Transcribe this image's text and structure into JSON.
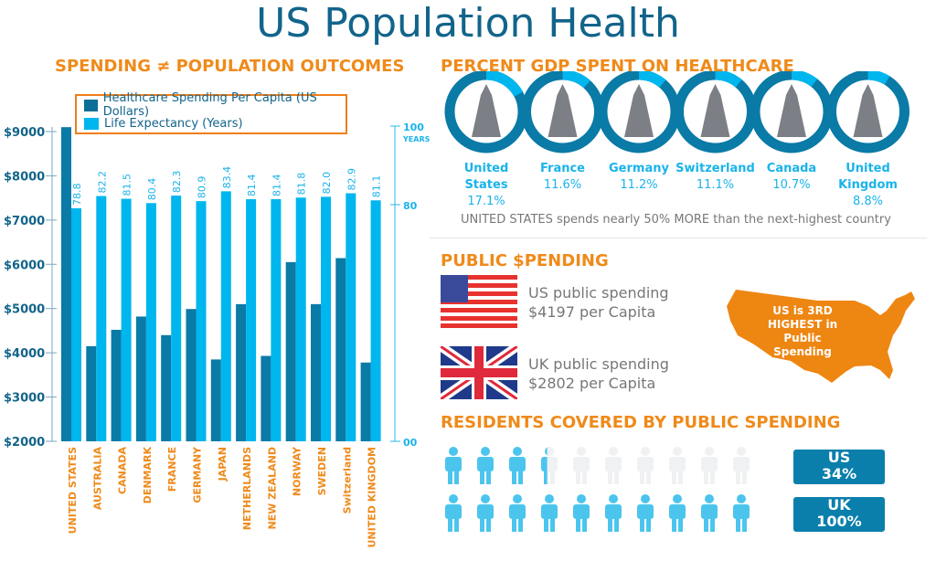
{
  "title": "US Population Health",
  "left": {
    "heading": "SPENDING ≠ POPULATION OUTCOMES"
  },
  "chart_data": {
    "type": "bar",
    "title": "",
    "categories": [
      "UNITED STATES",
      "AUSTRALIA",
      "CANADA",
      "DENMARK",
      "FRANCE",
      "GERMANY",
      "JAPAN",
      "NETHERLANDS",
      "NEW ZEALAND",
      "NORWAY",
      "SWEDEN",
      "Switzerland",
      "UNITED KINGDOM"
    ],
    "series": [
      {
        "name": "Healthcare Spending Per Capita (US Dollars)",
        "axis": "left",
        "color": "#0a7aa6",
        "values": [
          9100,
          4150,
          4520,
          4820,
          4400,
          4990,
          3850,
          5100,
          3930,
          6050,
          5100,
          6140,
          3780
        ]
      },
      {
        "name": "Life Expectancy (Years)",
        "axis": "right",
        "color": "#00b6ee",
        "values": [
          78.8,
          82.2,
          81.5,
          80.4,
          82.3,
          80.9,
          83.4,
          81.4,
          81.4,
          81.8,
          82.0,
          82.9,
          81.1
        ],
        "labels": [
          "78.8",
          "82.2",
          "81.5",
          "80.4",
          "82.3",
          "80.9",
          "83.4",
          "81.4",
          "81.4",
          "81.8",
          "82.0",
          "82.9",
          "81.1"
        ]
      }
    ],
    "yleft": {
      "ticks": [
        "$9000",
        "$8000",
        "$7000",
        "$6000",
        "$5000",
        "$4000",
        "$3000",
        "$2000"
      ],
      "range": [
        2000,
        9000
      ]
    },
    "yright": {
      "ticks": [
        "100",
        "80",
        "00"
      ],
      "unit": "YEARS",
      "range": [
        0,
        100
      ]
    },
    "legend": "top-left",
    "grid": false
  },
  "gdp": {
    "heading": "PERCENT GDP SPENT ON HEALTHCARE",
    "items": [
      {
        "country": "United States",
        "pct": "17.1%",
        "value": 17.1,
        "icon": "statue-of-liberty-icon"
      },
      {
        "country": "France",
        "pct": "11.6%",
        "value": 11.6,
        "icon": "eiffel-tower-icon"
      },
      {
        "country": "Germany",
        "pct": "11.2%",
        "value": 11.2,
        "icon": "brandenburg-gate-icon"
      },
      {
        "country": "Switzerland",
        "pct": "11.1%",
        "value": 11.1,
        "icon": "mountains-icon"
      },
      {
        "country": "Canada",
        "pct": "10.7%",
        "value": 10.7,
        "icon": "maple-leaf-icon"
      },
      {
        "country": "United Kingdom",
        "pct": "8.8%",
        "value": 8.8,
        "icon": "royal-guard-icon"
      }
    ],
    "note": "UNITED STATES spends nearly 50% MORE than the next-highest country"
  },
  "public": {
    "heading": "PUBLIC $PENDING",
    "us_line1": "US public spending",
    "us_line2": "$4197 per Capita",
    "uk_line1": "UK public spending",
    "uk_line2": "$2802 per Capita",
    "map_l1": "US is 3RD",
    "map_l2": "HIGHEST in",
    "map_l3": "Public",
    "map_l4": "Spending"
  },
  "residents": {
    "heading": "RESIDENTS COVERED BY PUBLIC SPENDING",
    "us": {
      "label": "US",
      "pct": "34%",
      "value": 34
    },
    "uk": {
      "label": "UK",
      "pct": "100%",
      "value": 100
    }
  },
  "colors": {
    "orange": "#ef8a1a",
    "dark_blue": "#0a7aa6",
    "light_blue": "#00b6ee",
    "title": "#12648a"
  }
}
